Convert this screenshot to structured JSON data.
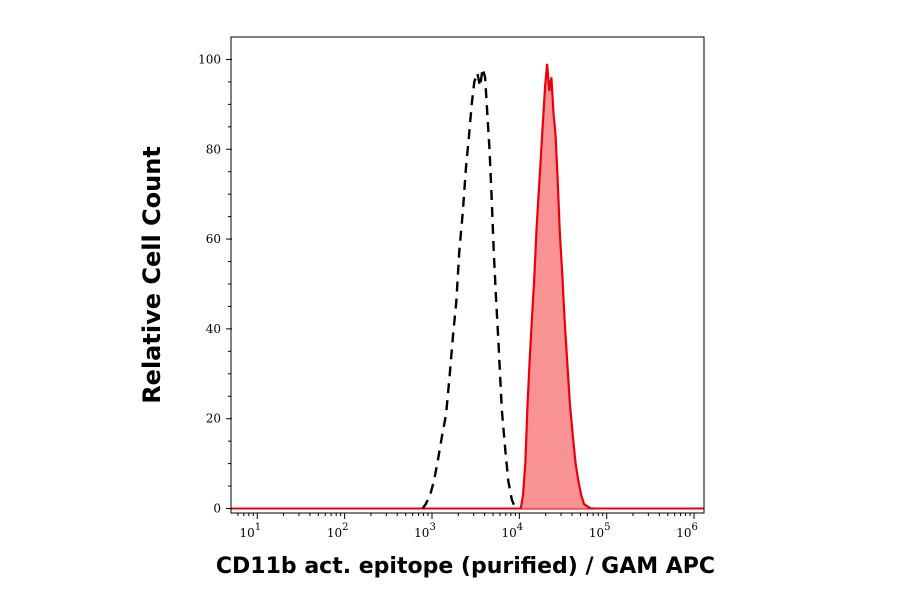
{
  "chart_data": {
    "type": "area",
    "xlabel": "CD11b act. epitope (purified) / GAM APC",
    "ylabel": "Relative Cell Count",
    "x_scale": "log",
    "xlim": [
      5,
      1300000
    ],
    "ylim": [
      -1,
      105
    ],
    "x_ticks": [
      {
        "base": "10",
        "exp": "1",
        "value": 10
      },
      {
        "base": "10",
        "exp": "2",
        "value": 100
      },
      {
        "base": "10",
        "exp": "3",
        "value": 1000
      },
      {
        "base": "10",
        "exp": "4",
        "value": 10000
      },
      {
        "base": "10",
        "exp": "5",
        "value": 100000
      },
      {
        "base": "10",
        "exp": "6",
        "value": 1000000
      }
    ],
    "y_ticks": [
      {
        "label": "0",
        "value": 0
      },
      {
        "label": "20",
        "value": 20
      },
      {
        "label": "40",
        "value": 40
      },
      {
        "label": "60",
        "value": 60
      },
      {
        "label": "80",
        "value": 80
      },
      {
        "label": "100",
        "value": 100
      }
    ],
    "grid": false,
    "legend": "none",
    "colors": {
      "stained_line": "#e8000d",
      "stained_fill": "#f99393",
      "control_line": "#000000"
    },
    "series": [
      {
        "style": "dashed",
        "x": [
          780,
          850,
          950,
          1050,
          1150,
          1300,
          1450,
          1600,
          1750,
          1900,
          2050,
          2250,
          2450,
          2650,
          2850,
          3050,
          3300,
          3550,
          3800,
          4050,
          4300,
          4550,
          4800,
          5100,
          5400,
          5800,
          6300,
          6900,
          7500,
          8200,
          9000
        ],
        "y": [
          0,
          1,
          3,
          6,
          10,
          16,
          21,
          30,
          39,
          46,
          57,
          66,
          76,
          83,
          90,
          95,
          97,
          94,
          98,
          96,
          88,
          80,
          70,
          57,
          47,
          36,
          22,
          13,
          6,
          2,
          0
        ]
      },
      {
        "style": "filled",
        "x": [
          10400,
          11000,
          11700,
          12400,
          13200,
          14000,
          14800,
          15700,
          16600,
          17600,
          18600,
          19700,
          20800,
          22000,
          23300,
          24600,
          26000,
          27500,
          29000,
          31000,
          33000,
          35500,
          38000,
          41000,
          44000,
          47500,
          51000,
          55000,
          60000,
          66000,
          72000
        ],
        "y": [
          0,
          3,
          10,
          23,
          34,
          43,
          51,
          62,
          70,
          78,
          86,
          94,
          99,
          93,
          96,
          88,
          83,
          73,
          62,
          52,
          42,
          32,
          23,
          16,
          10,
          6,
          3,
          1,
          0.5,
          0,
          0
        ]
      }
    ]
  }
}
